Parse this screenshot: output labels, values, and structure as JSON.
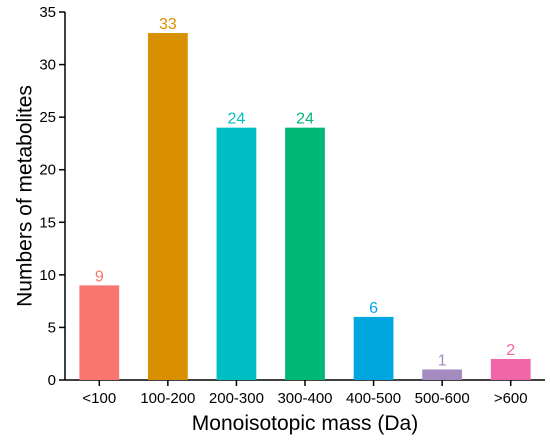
{
  "chart_data": {
    "type": "bar",
    "title": "",
    "xlabel": "Monoisotopic mass (Da)",
    "ylabel": "Numbers of metabolites",
    "categories": [
      "<100",
      "100-200",
      "200-300",
      "300-400",
      "400-500",
      "500-600",
      ">600"
    ],
    "values": [
      9,
      33,
      24,
      24,
      6,
      1,
      2
    ],
    "data_labels": [
      "9",
      "33",
      "24",
      "24",
      "6",
      "1",
      "2"
    ],
    "colors": [
      "#f8766d",
      "#d89000",
      "#00bfc4",
      "#00b875",
      "#00a6e0",
      "#a58ac0",
      "#f066a8"
    ],
    "ylim": [
      0,
      35
    ],
    "yticks": [
      0,
      5,
      10,
      15,
      20,
      25,
      30,
      35
    ],
    "ytick_labels": [
      "0",
      "5",
      "10",
      "15",
      "20",
      "25",
      "30",
      "35"
    ],
    "grid": false,
    "legend": "none"
  }
}
